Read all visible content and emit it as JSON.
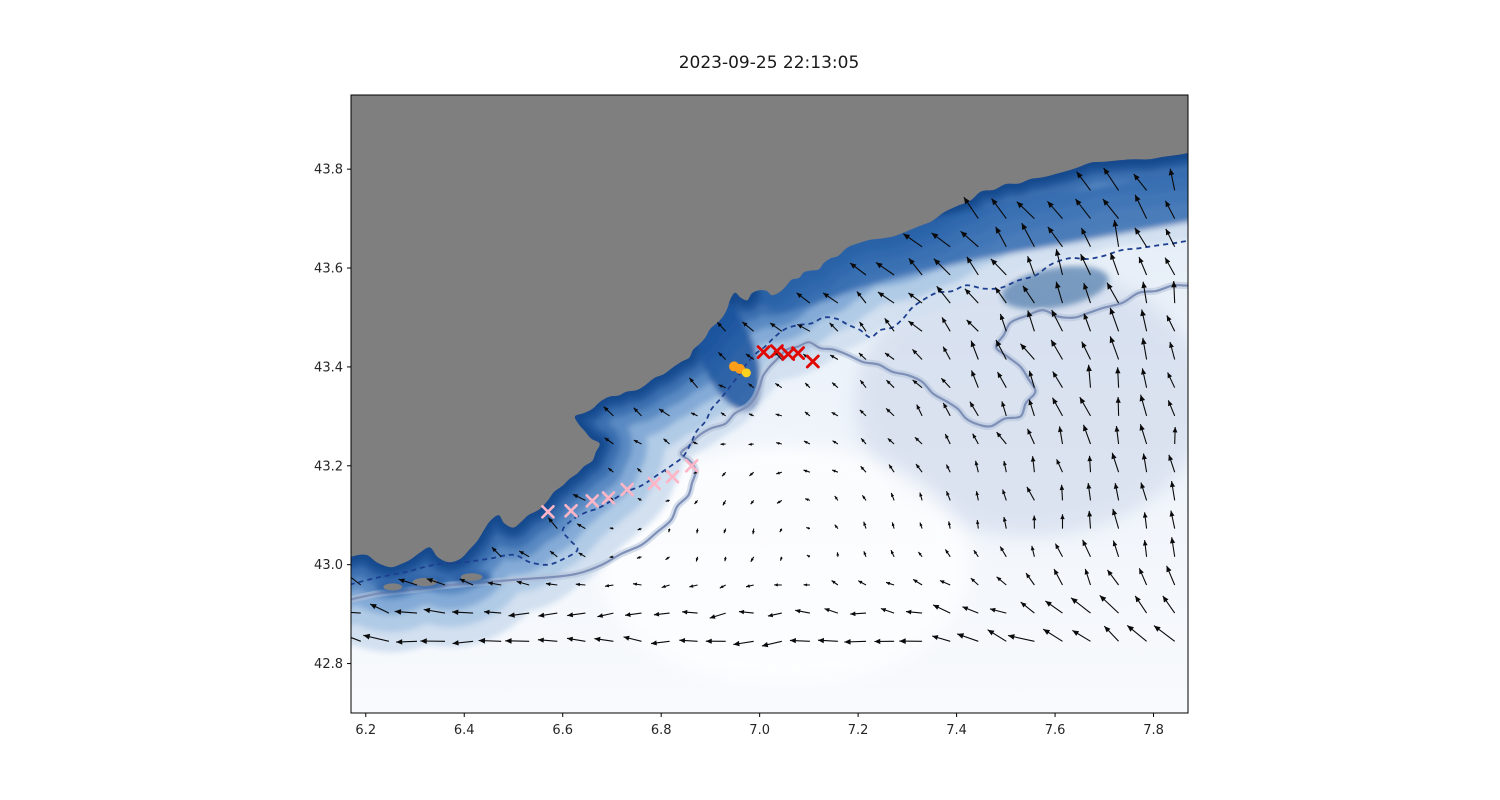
{
  "chart_data": {
    "type": "map-quiver",
    "title": "2023-09-25 22:13:05",
    "xlabel": "",
    "ylabel": "",
    "xlim": [
      6.17,
      7.87
    ],
    "ylim": [
      42.7,
      43.95
    ],
    "x_ticks": [
      6.2,
      6.4,
      6.6,
      6.8,
      7.0,
      7.2,
      7.4,
      7.6,
      7.8
    ],
    "x_tick_labels": [
      "6.2",
      "6.4",
      "6.6",
      "6.8",
      "7.0",
      "7.2",
      "7.4",
      "7.6",
      "7.8"
    ],
    "y_ticks": [
      42.8,
      43.0,
      43.2,
      43.4,
      43.6,
      43.8
    ],
    "y_tick_labels": [
      "42.8",
      "43.0",
      "43.2",
      "43.4",
      "43.6",
      "43.8"
    ],
    "grid": false,
    "map": {
      "land_color": "#7f7f7f",
      "sea_light": "#f8fafd",
      "sea_mid": "#edf3fa",
      "sea_shade": "#dfe9f4",
      "band_colors": [
        "#d2e0f0",
        "#b0cbe6",
        "#84abd7",
        "#5a8ac3",
        "#3a6fb0",
        "#24599d",
        "#194a8d"
      ],
      "coastline": [
        [
          6.14,
          43.005
        ],
        [
          6.2,
          43.02
        ],
        [
          6.25,
          42.995
        ],
        [
          6.29,
          43.01
        ],
        [
          6.33,
          43.035
        ],
        [
          6.37,
          43.005
        ],
        [
          6.41,
          43.03
        ],
        [
          6.44,
          43.07
        ],
        [
          6.47,
          43.1
        ],
        [
          6.5,
          43.075
        ],
        [
          6.53,
          43.1
        ],
        [
          6.57,
          43.13
        ],
        [
          6.6,
          43.16
        ],
        [
          6.63,
          43.185
        ],
        [
          6.66,
          43.21
        ],
        [
          6.675,
          43.245
        ],
        [
          6.645,
          43.27
        ],
        [
          6.625,
          43.3
        ],
        [
          6.66,
          43.315
        ],
        [
          6.695,
          43.34
        ],
        [
          6.73,
          43.35
        ],
        [
          6.77,
          43.365
        ],
        [
          6.805,
          43.385
        ],
        [
          6.84,
          43.41
        ],
        [
          6.865,
          43.435
        ],
        [
          6.89,
          43.46
        ],
        [
          6.915,
          43.49
        ],
        [
          6.935,
          43.52
        ],
        [
          6.95,
          43.55
        ],
        [
          6.975,
          43.535
        ],
        [
          7.0,
          43.555
        ],
        [
          7.025,
          43.545
        ],
        [
          7.055,
          43.565
        ],
        [
          7.08,
          43.58
        ],
        [
          7.105,
          43.595
        ],
        [
          7.13,
          43.61
        ],
        [
          7.16,
          43.625
        ],
        [
          7.2,
          43.65
        ],
        [
          7.25,
          43.66
        ],
        [
          7.3,
          43.675
        ],
        [
          7.35,
          43.695
        ],
        [
          7.4,
          43.725
        ],
        [
          7.45,
          43.755
        ],
        [
          7.5,
          43.77
        ],
        [
          7.55,
          43.78
        ],
        [
          7.6,
          43.79
        ],
        [
          7.65,
          43.805
        ],
        [
          7.7,
          43.815
        ],
        [
          7.76,
          43.82
        ],
        [
          7.82,
          43.825
        ],
        [
          7.9,
          43.84
        ]
      ],
      "islands": [
        {
          "cx": 6.255,
          "cy": 42.955,
          "rx": 0.035,
          "ry": 0.013
        },
        {
          "cx": 6.32,
          "cy": 42.965,
          "rx": 0.045,
          "ry": 0.015
        },
        {
          "cx": 6.415,
          "cy": 42.975,
          "rx": 0.04,
          "ry": 0.014
        }
      ],
      "extra_band": [
        [
          7.05,
          43.56
        ],
        [
          7.25,
          43.625
        ],
        [
          7.45,
          43.67
        ],
        [
          7.62,
          43.7
        ],
        [
          7.9,
          43.75
        ]
      ],
      "deep_patches": [
        {
          "cx": 6.935,
          "cy": 43.43,
          "rx_deg": 0.055,
          "ry_deg": 0.125,
          "rot": -20,
          "color": "#1e56a0",
          "opacity": 0.85
        },
        {
          "cx": 7.6,
          "cy": 43.56,
          "rx_deg": 0.11,
          "ry_deg": 0.04,
          "rot": -10,
          "color": "#35699f",
          "opacity": 0.6
        }
      ]
    },
    "contours": {
      "navy_dashed": [
        [
          6.15,
          42.955
        ],
        [
          6.28,
          42.985
        ],
        [
          6.4,
          43.005
        ],
        [
          6.5,
          43.02
        ],
        [
          6.57,
          43.0
        ],
        [
          6.63,
          43.03
        ],
        [
          6.6,
          43.07
        ],
        [
          6.645,
          43.105
        ],
        [
          6.7,
          43.13
        ],
        [
          6.76,
          43.16
        ],
        [
          6.82,
          43.2
        ],
        [
          6.86,
          43.245
        ],
        [
          6.89,
          43.29
        ],
        [
          6.92,
          43.335
        ],
        [
          6.955,
          43.38
        ],
        [
          6.99,
          43.425
        ],
        [
          7.03,
          43.46
        ],
        [
          7.08,
          43.485
        ],
        [
          7.13,
          43.5
        ],
        [
          7.18,
          43.485
        ],
        [
          7.225,
          43.46
        ],
        [
          7.27,
          43.48
        ],
        [
          7.31,
          43.52
        ],
        [
          7.36,
          43.55
        ],
        [
          7.42,
          43.565
        ],
        [
          7.49,
          43.56
        ],
        [
          7.56,
          43.585
        ],
        [
          7.63,
          43.62
        ],
        [
          7.7,
          43.625
        ],
        [
          7.77,
          43.64
        ],
        [
          7.84,
          43.65
        ],
        [
          7.9,
          43.66
        ]
      ],
      "slate_solid": [
        [
          6.15,
          42.925
        ],
        [
          6.3,
          42.95
        ],
        [
          6.45,
          42.965
        ],
        [
          6.58,
          42.975
        ],
        [
          6.68,
          43.0
        ],
        [
          6.76,
          43.04
        ],
        [
          6.82,
          43.09
        ],
        [
          6.855,
          43.14
        ],
        [
          6.87,
          43.19
        ],
        [
          6.84,
          43.225
        ],
        [
          6.875,
          43.26
        ],
        [
          6.93,
          43.285
        ],
        [
          6.975,
          43.32
        ],
        [
          7.0,
          43.36
        ],
        [
          7.02,
          43.4
        ],
        [
          7.055,
          43.435
        ],
        [
          7.1,
          43.45
        ],
        [
          7.15,
          43.435
        ],
        [
          7.21,
          43.41
        ],
        [
          7.27,
          43.39
        ],
        [
          7.33,
          43.37
        ],
        [
          7.38,
          43.33
        ],
        [
          7.42,
          43.295
        ],
        [
          7.47,
          43.28
        ],
        [
          7.53,
          43.3
        ],
        [
          7.56,
          43.35
        ],
        [
          7.53,
          43.4
        ],
        [
          7.48,
          43.44
        ],
        [
          7.51,
          43.49
        ],
        [
          7.575,
          43.515
        ],
        [
          7.64,
          43.5
        ],
        [
          7.7,
          43.52
        ],
        [
          7.77,
          43.55
        ],
        [
          7.84,
          43.565
        ],
        [
          7.9,
          43.575
        ]
      ]
    },
    "markers": {
      "red_x": {
        "color": "#e10600",
        "points": [
          [
            7.008,
            43.43
          ],
          [
            7.035,
            43.432
          ],
          [
            7.058,
            43.426
          ],
          [
            7.078,
            43.428
          ],
          [
            7.108,
            43.411
          ]
        ]
      },
      "pink_x": {
        "color": "#ffb5c5",
        "points": [
          [
            6.57,
            43.107
          ],
          [
            6.617,
            43.109
          ],
          [
            6.66,
            43.129
          ],
          [
            6.693,
            43.135
          ],
          [
            6.731,
            43.152
          ],
          [
            6.786,
            43.164
          ],
          [
            6.823,
            43.178
          ],
          [
            6.862,
            43.2
          ]
        ]
      },
      "orange_dots": {
        "color": "#ff9e1b",
        "points": [
          [
            6.948,
            43.401
          ],
          [
            6.96,
            43.396
          ]
        ]
      },
      "yellow_dots": {
        "color": "#ffd21e",
        "points": [
          [
            6.973,
            43.388
          ]
        ]
      }
    },
    "quiver": {
      "color": "#0a0a0a",
      "grid_step": 0.057,
      "components": [
        {
          "type": "jet",
          "axis": "lat",
          "center": 42.85,
          "width": 0.1,
          "u": -1.5,
          "v": 0.02
        },
        {
          "type": "jet",
          "axis": "lon",
          "center": 7.78,
          "width": 0.3,
          "u": -0.18,
          "v": 1.25
        },
        {
          "type": "coast",
          "width": 0.16,
          "u": -0.75,
          "v": 0.6
        },
        {
          "type": "blob",
          "lon": 7.45,
          "lat": 43.5,
          "r": 0.3,
          "u": -0.7,
          "v": 0.7
        },
        {
          "type": "eddy",
          "lon": 7.1,
          "lat": 43.05,
          "r": 0.2,
          "strength": 2.2
        }
      ]
    }
  }
}
